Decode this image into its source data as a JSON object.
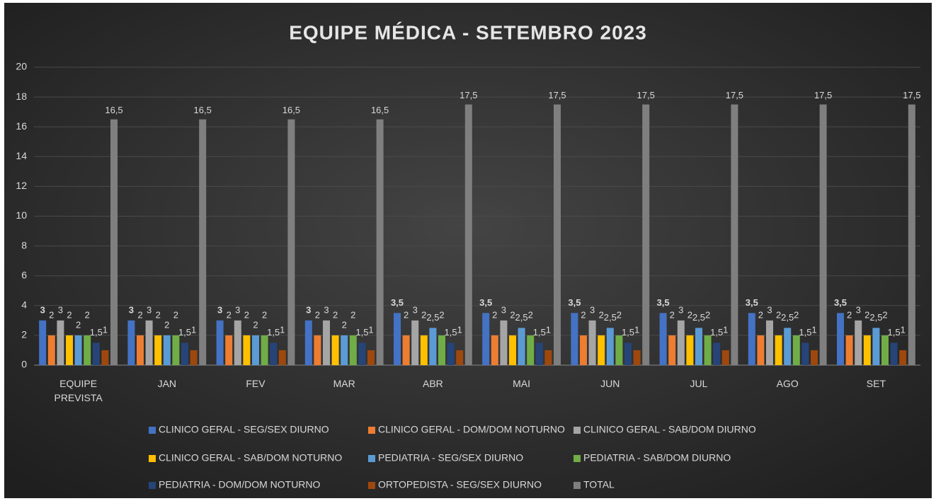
{
  "chart_data": {
    "type": "bar",
    "title": "EQUIPE MÉDICA -  SETEMBRO 2023",
    "categories": [
      "EQUIPE PREVISTA",
      "JAN",
      "FEV",
      "MAR",
      "ABR",
      "MAI",
      "JUN",
      "JUL",
      "AGO",
      "SET"
    ],
    "series": [
      {
        "name": "CLINICO GERAL - SEG/SEX DIURNO",
        "color": "#4472c4",
        "values": [
          3,
          3,
          3,
          3,
          3.5,
          3.5,
          3.5,
          3.5,
          3.5,
          3.5
        ],
        "value_labels": [
          "3",
          "3",
          "3",
          "3",
          "3,5",
          "3,5",
          "3,5",
          "3,5",
          "3,5",
          "3,5"
        ]
      },
      {
        "name": "CLINICO GERAL - DOM/DOM NOTURNO",
        "color": "#ed7d31",
        "values": [
          2,
          2,
          2,
          2,
          2,
          2,
          2,
          2,
          2,
          2
        ]
      },
      {
        "name": "CLINICO GERAL - SAB/DOM DIURNO",
        "color": "#a5a5a5",
        "values": [
          3,
          3,
          3,
          3,
          3,
          3,
          3,
          3,
          3,
          3
        ]
      },
      {
        "name": "CLINICO GERAL - SAB/DOM NOTURNO",
        "color": "#ffc000",
        "values": [
          2,
          2,
          2,
          2,
          2,
          2,
          2,
          2,
          2,
          2
        ]
      },
      {
        "name": "PEDIATRIA - SEG/SEX DIURNO",
        "color": "#5b9bd5",
        "values": [
          2,
          2,
          2,
          2,
          2.5,
          2.5,
          2.5,
          2.5,
          2.5,
          2.5
        ],
        "value_labels": [
          "2",
          "2",
          "2",
          "2",
          "2,5",
          "2,5",
          "2,5",
          "2,5",
          "2,5",
          "2,5"
        ]
      },
      {
        "name": "PEDIATRIA - SAB/DOM DIURNO",
        "color": "#70ad47",
        "values": [
          2,
          2,
          2,
          2,
          2,
          2,
          2,
          2,
          2,
          2
        ]
      },
      {
        "name": "PEDIATRIA - DOM/DOM NOTURNO",
        "color": "#264478",
        "values": [
          1.5,
          1.5,
          1.5,
          1.5,
          1.5,
          1.5,
          1.5,
          1.5,
          1.5,
          1.5
        ],
        "value_labels": [
          "1,5",
          "1,5",
          "1,5",
          "1,5",
          "1,5",
          "1,5",
          "1,5",
          "1,5",
          "1,5",
          "1,5"
        ]
      },
      {
        "name": "ORTOPEDISTA - SEG/SEX DIURNO",
        "color": "#9e480e",
        "values": [
          1,
          1,
          1,
          1,
          1,
          1,
          1,
          1,
          1,
          1
        ]
      },
      {
        "name": "TOTAL",
        "color": "#7f7f7f",
        "values": [
          16.5,
          16.5,
          16.5,
          16.5,
          17.5,
          17.5,
          17.5,
          17.5,
          17.5,
          17.5
        ],
        "value_labels": [
          "16,5",
          "16,5",
          "16,5",
          "16,5",
          "17,5",
          "17,5",
          "17,5",
          "17,5",
          "17,5",
          "17,5"
        ]
      }
    ],
    "ylim": [
      0,
      20
    ],
    "yticks": [
      0,
      2,
      4,
      6,
      8,
      10,
      12,
      14,
      16,
      18,
      20
    ],
    "grid": true
  }
}
